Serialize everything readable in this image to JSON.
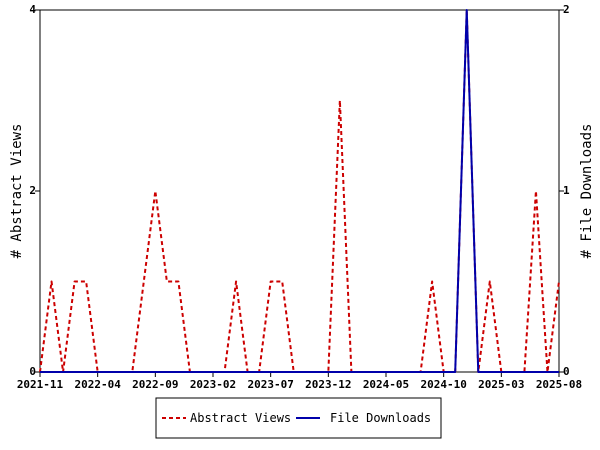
{
  "chart_data": {
    "type": "line",
    "x_labels": [
      "2021-11",
      "2022-04",
      "2022-09",
      "2023-02",
      "2023-07",
      "2023-12",
      "2024-05",
      "2024-10",
      "2025-03",
      "2025-08"
    ],
    "x_months": [
      "2021-11",
      "2021-12",
      "2022-01",
      "2022-02",
      "2022-03",
      "2022-04",
      "2022-05",
      "2022-06",
      "2022-07",
      "2022-08",
      "2022-09",
      "2022-10",
      "2022-11",
      "2022-12",
      "2023-01",
      "2023-02",
      "2023-03",
      "2023-04",
      "2023-05",
      "2023-06",
      "2023-07",
      "2023-08",
      "2023-09",
      "2023-10",
      "2023-11",
      "2023-12",
      "2024-01",
      "2024-02",
      "2024-03",
      "2024-04",
      "2024-05",
      "2024-06",
      "2024-07",
      "2024-08",
      "2024-09",
      "2024-10",
      "2024-11",
      "2024-12",
      "2025-01",
      "2025-02",
      "2025-03",
      "2025-04",
      "2025-05",
      "2025-06",
      "2025-07",
      "2025-08"
    ],
    "series": [
      {
        "name": "Abstract Views",
        "axis": "left",
        "color": "#cc0000",
        "dash": true,
        "values": [
          0,
          1,
          0,
          1,
          1,
          0,
          0,
          0,
          0,
          1,
          2,
          1,
          1,
          0,
          0,
          0,
          0,
          1,
          0,
          0,
          1,
          1,
          0,
          0,
          0,
          0,
          3,
          0,
          0,
          0,
          0,
          0,
          0,
          0,
          1,
          0,
          0,
          4,
          0,
          1,
          0,
          0,
          0,
          2,
          0,
          1
        ]
      },
      {
        "name": "File Downloads",
        "axis": "right",
        "color": "#0000aa",
        "dash": false,
        "values": [
          0,
          0,
          0,
          0,
          0,
          0,
          0,
          0,
          0,
          0,
          0,
          0,
          0,
          0,
          0,
          0,
          0,
          0,
          0,
          0,
          0,
          0,
          0,
          0,
          0,
          0,
          0,
          0,
          0,
          0,
          0,
          0,
          0,
          0,
          0,
          0,
          0,
          2,
          0,
          0,
          0,
          0,
          0,
          0,
          0,
          0
        ]
      }
    ],
    "y_left": {
      "label": "# Abstract Views",
      "ticks": [
        "0",
        "2",
        "4"
      ],
      "range": [
        0,
        4
      ]
    },
    "y_right": {
      "label": "# File Downloads",
      "ticks": [
        "0",
        "1",
        "2"
      ],
      "range": [
        0,
        2
      ]
    },
    "legend": {
      "placement": "bottom",
      "items": [
        "Abstract Views",
        "File Downloads"
      ]
    }
  }
}
